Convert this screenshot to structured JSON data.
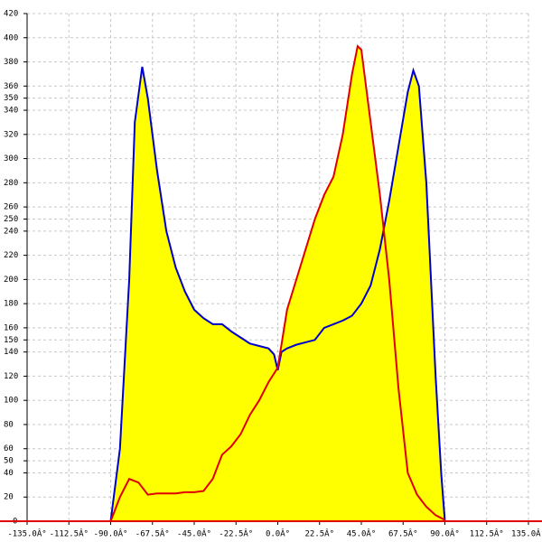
{
  "chart_data": {
    "type": "area",
    "xlim": [
      -135,
      135
    ],
    "xticks": [
      {
        "value": -135,
        "label": "-135.0Â°"
      },
      {
        "value": -112.5,
        "label": "-112.5Â°"
      },
      {
        "value": -90,
        "label": "-90.0Â°"
      },
      {
        "value": -67.5,
        "label": "-67.5Â°"
      },
      {
        "value": -45,
        "label": "-45.0Â°"
      },
      {
        "value": -22.5,
        "label": "-22.5Â°"
      },
      {
        "value": 0,
        "label": "0.0Â°"
      },
      {
        "value": 22.5,
        "label": "22.5Â°"
      },
      {
        "value": 45,
        "label": "45.0Â°"
      },
      {
        "value": 67.5,
        "label": "67.5Â°"
      },
      {
        "value": 90,
        "label": "90.0Â°"
      },
      {
        "value": 112.5,
        "label": "112.5Â°"
      },
      {
        "value": 135,
        "label": "135.0Â°"
      }
    ],
    "ylim": [
      0,
      420
    ],
    "yticks": [
      0,
      20,
      40,
      50,
      60,
      80,
      100,
      120,
      140,
      150,
      160,
      180,
      200,
      220,
      240,
      250,
      260,
      280,
      300,
      320,
      340,
      350,
      360,
      380,
      400,
      420
    ],
    "grid": true,
    "fill": "#ffff00",
    "series": [
      {
        "color": "#0000cc",
        "x": [
          -90,
          -85,
          -80,
          -77,
          -73,
          -70,
          -65,
          -60,
          -55,
          -50,
          -45,
          -40,
          -35,
          -30,
          -25,
          -20,
          -15,
          -10,
          -5,
          -2,
          0,
          2,
          5,
          10,
          15,
          20,
          25,
          30,
          35,
          40,
          45,
          50,
          55,
          60,
          65,
          70,
          73,
          76,
          80,
          85,
          88,
          90
        ],
        "values": [
          0,
          60,
          200,
          330,
          376,
          350,
          290,
          240,
          210,
          190,
          175,
          168,
          163,
          163,
          157,
          152,
          147,
          145,
          143,
          138,
          125,
          140,
          143,
          146,
          148,
          150,
          160,
          163,
          166,
          170,
          180,
          195,
          225,
          265,
          310,
          355,
          373,
          360,
          280,
          120,
          40,
          0
        ]
      },
      {
        "color": "#e00000",
        "x": [
          -90,
          -85,
          -80,
          -75,
          -70,
          -65,
          -60,
          -55,
          -50,
          -45,
          -40,
          -35,
          -30,
          -25,
          -20,
          -15,
          -10,
          -5,
          0,
          5,
          10,
          15,
          20,
          25,
          30,
          35,
          40,
          43,
          45,
          50,
          55,
          60,
          65,
          70,
          75,
          80,
          85,
          90
        ],
        "values": [
          0,
          20,
          35,
          32,
          22,
          23,
          23,
          23,
          24,
          24,
          25,
          35,
          55,
          62,
          72,
          88,
          100,
          115,
          127,
          175,
          200,
          225,
          250,
          270,
          285,
          320,
          370,
          393,
          390,
          330,
          270,
          200,
          110,
          40,
          22,
          12,
          5,
          1
        ]
      }
    ]
  }
}
